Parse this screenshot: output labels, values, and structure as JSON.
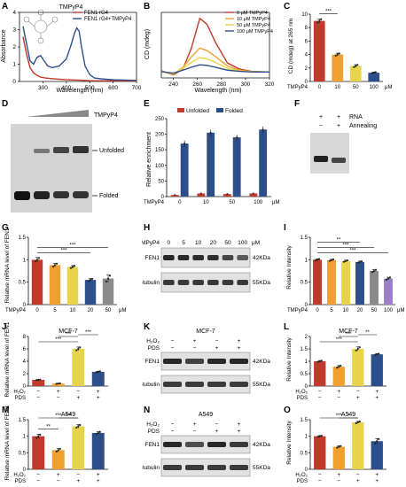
{
  "panels": {
    "A": {
      "letter": "A",
      "chart_data": {
        "type": "line",
        "inset_label": "TMPyP4",
        "xlabel": "Wavelength (nm)",
        "ylabel": "Absorbance",
        "xlim": [
          200,
          700
        ],
        "ylim": [
          0,
          4
        ],
        "xticks": [
          300,
          400,
          500,
          600,
          700
        ],
        "yticks": [
          0,
          1,
          2,
          3,
          4
        ],
        "legend": "top-right",
        "series": [
          {
            "name": "FEN1 rG4",
            "color": "#c0392b",
            "x": [
              215,
              230,
              245,
              260,
              275,
              290,
              310,
              350,
              400,
              450,
              500,
              600,
              700
            ],
            "y": [
              2.6,
              1.6,
              0.8,
              0.5,
              0.35,
              0.25,
              0.2,
              0.15,
              0.1,
              0.08,
              0.05,
              0.04,
              0.03
            ]
          },
          {
            "name": "FEN1 rG4+TMPyP4",
            "color": "#2c4f8c",
            "x": [
              215,
              230,
              245,
              260,
              275,
              290,
              305,
              320,
              340,
              370,
              400,
              420,
              435,
              445,
              455,
              465,
              480,
              500,
              520,
              550,
              600,
              650,
              700
            ],
            "y": [
              3.2,
              2.2,
              1.2,
              1.0,
              1.4,
              1.5,
              1.2,
              0.9,
              0.8,
              0.9,
              1.3,
              2.1,
              2.8,
              3.1,
              2.9,
              2.0,
              0.9,
              0.4,
              0.2,
              0.15,
              0.1,
              0.08,
              0.06
            ]
          }
        ]
      }
    },
    "B": {
      "letter": "B",
      "chart_data": {
        "type": "line",
        "xlabel": "Wavelength (nm)",
        "ylabel": "CD (mdeg)",
        "xlim": [
          230,
          320
        ],
        "xticks": [
          240,
          260,
          280,
          300,
          320
        ],
        "legend": "top-right",
        "series": [
          {
            "name": "0 μM TMPyP4",
            "color": "#c0392b",
            "x": [
              230,
              240,
              248,
              255,
              262,
              268,
              275,
              285,
              295,
              305,
              320
            ],
            "y": [
              0.2,
              -0.5,
              0.5,
              4,
              9,
              8,
              5,
              1.5,
              0.5,
              0.1,
              0
            ]
          },
          {
            "name": "10 μM TMPyP4",
            "color": "#f0a030",
            "x": [
              230,
              240,
              248,
              255,
              262,
              268,
              275,
              285,
              295,
              305,
              320
            ],
            "y": [
              0.1,
              -0.4,
              0.8,
              2.5,
              4,
              3.6,
              2.6,
              1,
              0.3,
              0.05,
              0
            ]
          },
          {
            "name": "50 μM TMPyP4",
            "color": "#e8d44a",
            "x": [
              230,
              240,
              248,
              255,
              262,
              268,
              275,
              285,
              295,
              305,
              320
            ],
            "y": [
              0.1,
              -0.3,
              0.6,
              1.6,
              2.4,
              2.2,
              1.6,
              0.6,
              0.2,
              0.05,
              0
            ]
          },
          {
            "name": "100 μM TMPyP4",
            "color": "#2c4f8c",
            "x": [
              230,
              240,
              248,
              255,
              262,
              268,
              275,
              285,
              295,
              305,
              320
            ],
            "y": [
              0.05,
              -0.2,
              0.3,
              0.8,
              1.2,
              1.1,
              0.8,
              0.3,
              0.1,
              0,
              0
            ]
          }
        ]
      }
    },
    "C": {
      "letter": "C",
      "chart_data": {
        "type": "bar",
        "ylabel": "CD (mdeg) at 265 nm",
        "xlabel_left": "TMPyP4",
        "unit": "μM",
        "categories": [
          "0",
          "10",
          "50",
          "100"
        ],
        "values": [
          9.0,
          4.0,
          2.3,
          1.3
        ],
        "errors": [
          0.3,
          0.2,
          0.2,
          0.1
        ],
        "ylim": [
          0,
          10
        ],
        "yticks": [
          0,
          2,
          4,
          6,
          8,
          10
        ],
        "colors": [
          "#c0392b",
          "#f0a030",
          "#e8d44a",
          "#2c4f8c"
        ],
        "significance": [
          {
            "from": 0,
            "to": 1,
            "label": "***"
          }
        ]
      }
    },
    "D": {
      "letter": "D",
      "ramp_label": "TMPyP4",
      "band_unfolded": "Unfolded",
      "band_folded": "Folded"
    },
    "E": {
      "letter": "E",
      "chart_data": {
        "type": "bar",
        "ylabel": "Relative enrichment",
        "xlabel_left": "TMPyP4",
        "unit": "μM",
        "categories": [
          "0",
          "10",
          "50",
          "100"
        ],
        "legend": "top",
        "series": [
          {
            "name": "Unfolded",
            "color": "#c0392b",
            "values": [
              5,
              10,
              8,
              10
            ],
            "errors": [
              1,
              2,
              2,
              2
            ]
          },
          {
            "name": "Folded",
            "color": "#2c4f8c",
            "values": [
              170,
              205,
              190,
              215
            ],
            "errors": [
              10,
              10,
              8,
              10
            ]
          }
        ],
        "ylim": [
          0,
          250
        ],
        "yticks": [
          0,
          50,
          100,
          150,
          200,
          250
        ]
      }
    },
    "F": {
      "letter": "F",
      "row1_label": "RNA",
      "row2_label": "Annealing",
      "row1_signs": [
        "+",
        "+"
      ],
      "row2_signs": [
        "−",
        "+"
      ]
    },
    "G": {
      "letter": "G",
      "chart_data": {
        "type": "bar",
        "ylabel": "Relative mRNA level of FEN1",
        "xlabel_left": "TMPyP4",
        "unit": "μM",
        "categories": [
          "0",
          "5",
          "10",
          "20",
          "50"
        ],
        "values": [
          1.0,
          0.88,
          0.84,
          0.55,
          0.58
        ],
        "errors": [
          0.05,
          0.04,
          0.03,
          0.03,
          0.08
        ],
        "ylim": [
          0,
          1.5
        ],
        "yticks": [
          0,
          0.5,
          1.0,
          1.5
        ],
        "colors": [
          "#c0392b",
          "#f0a030",
          "#e8d44a",
          "#2c4f8c",
          "#8a8a8a"
        ],
        "significance": [
          {
            "from": 0,
            "to": 3,
            "label": "***"
          },
          {
            "from": 0,
            "to": 4,
            "label": "***"
          }
        ]
      }
    },
    "H": {
      "letter": "H",
      "treatment_label": "TMPyP4",
      "doses": [
        "0",
        "5",
        "10",
        "20",
        "50",
        "100"
      ],
      "unit": "μM",
      "rows": [
        {
          "name": "FEN1",
          "kda": "42KDa"
        },
        {
          "name": "β-tubulin",
          "kda": "55KDa"
        }
      ]
    },
    "I": {
      "letter": "I",
      "chart_data": {
        "type": "bar",
        "ylabel": "Relative Intensity",
        "xlabel_left": "TMPyP4",
        "unit": "μM",
        "categories": [
          "0",
          "5",
          "10",
          "20",
          "50",
          "100"
        ],
        "values": [
          1.0,
          0.99,
          0.97,
          0.95,
          0.75,
          0.58
        ],
        "errors": [
          0.02,
          0.02,
          0.02,
          0.02,
          0.03,
          0.03
        ],
        "ylim": [
          0,
          1.5
        ],
        "yticks": [
          0,
          0.5,
          1.0,
          1.5
        ],
        "colors": [
          "#c0392b",
          "#f0a030",
          "#e8d44a",
          "#2c4f8c",
          "#8a8a8a",
          "#9b7fc9"
        ],
        "significance": [
          {
            "from": 0,
            "to": 5,
            "label": "***"
          },
          {
            "from": 0,
            "to": 4,
            "label": "***"
          },
          {
            "from": 0,
            "to": 3,
            "label": "**"
          }
        ]
      }
    },
    "J": {
      "letter": "J",
      "chart_data": {
        "type": "bar",
        "title": "MCF-7",
        "ylabel": "Relative mRNA level of FEN1",
        "row1_label": "H₂O₂",
        "row2_label": "PDS",
        "row1_signs": [
          "−",
          "+",
          "−",
          "+"
        ],
        "row2_signs": [
          "−",
          "−",
          "+",
          "+"
        ],
        "values": [
          1.0,
          0.4,
          6.0,
          2.3
        ],
        "errors": [
          0.05,
          0.05,
          0.3,
          0.1
        ],
        "ylim": [
          0,
          8
        ],
        "yticks": [
          0,
          2,
          4,
          6,
          8
        ],
        "colors": [
          "#c0392b",
          "#f0a030",
          "#e8d44a",
          "#2c4f8c"
        ],
        "significance": [
          {
            "from": 0,
            "to": 2,
            "label": "***"
          },
          {
            "from": 1,
            "to": 2,
            "label": "***"
          },
          {
            "from": 2,
            "to": 3,
            "label": "***"
          }
        ]
      }
    },
    "K": {
      "letter": "K",
      "cell_line": "MCF-7",
      "row1_label": "H₂O₂",
      "row2_label": "PDS",
      "row1_signs": [
        "−",
        "+",
        "−",
        "+"
      ],
      "row2_signs": [
        "−",
        "−",
        "+",
        "+"
      ],
      "rows": [
        {
          "name": "FEN1",
          "kda": "42KDa"
        },
        {
          "name": "β-tubulin",
          "kda": "55KDa"
        }
      ]
    },
    "L": {
      "letter": "L",
      "chart_data": {
        "type": "bar",
        "title": "MCF-7",
        "ylabel": "Relative Intensity",
        "row1_label": "H₂O₂",
        "row2_label": "PDS",
        "row1_signs": [
          "−",
          "+",
          "−",
          "+"
        ],
        "row2_signs": [
          "−",
          "−",
          "+",
          "+"
        ],
        "values": [
          1.0,
          0.78,
          1.5,
          1.28
        ],
        "errors": [
          0.03,
          0.05,
          0.08,
          0.03
        ],
        "ylim": [
          0,
          2.0
        ],
        "yticks": [
          0,
          0.5,
          1.0,
          1.5,
          2.0
        ],
        "colors": [
          "#c0392b",
          "#f0a030",
          "#e8d44a",
          "#2c4f8c"
        ],
        "significance": [
          {
            "from": 0,
            "to": 2,
            "label": "***"
          },
          {
            "from": 1,
            "to": 2,
            "label": "***"
          },
          {
            "from": 2,
            "to": 3,
            "label": "**"
          }
        ]
      }
    },
    "M": {
      "letter": "M",
      "chart_data": {
        "type": "bar",
        "title": "A549",
        "ylabel": "Relative mRNA level of FEN1",
        "row1_label": "H₂O₂",
        "row2_label": "PDS",
        "row1_signs": [
          "−",
          "+",
          "−",
          "+"
        ],
        "row2_signs": [
          "−",
          "−",
          "+",
          "+"
        ],
        "values": [
          1.0,
          0.58,
          1.3,
          1.1
        ],
        "errors": [
          0.06,
          0.05,
          0.05,
          0.04
        ],
        "ylim": [
          0,
          1.5
        ],
        "yticks": [
          0,
          0.5,
          1.0,
          1.5
        ],
        "colors": [
          "#c0392b",
          "#f0a030",
          "#e8d44a",
          "#2c4f8c"
        ],
        "significance": [
          {
            "from": 0,
            "to": 1,
            "label": "**"
          },
          {
            "from": 0,
            "to": 2,
            "label": "***"
          },
          {
            "from": 1,
            "to": 2,
            "label": "***"
          }
        ]
      }
    },
    "N": {
      "letter": "N",
      "cell_line": "A549",
      "row1_label": "H₂O₂",
      "row2_label": "PDS",
      "row1_signs": [
        "−",
        "+",
        "−",
        "+"
      ],
      "row2_signs": [
        "−",
        "−",
        "+",
        "+"
      ],
      "rows": [
        {
          "name": "FEN1",
          "kda": "42KDa"
        },
        {
          "name": "β-tubulin",
          "kda": "55KDa"
        }
      ]
    },
    "O": {
      "letter": "O",
      "chart_data": {
        "type": "bar",
        "title": "A549",
        "ylabel": "Relative Intensity",
        "row1_label": "H₂O₂",
        "row2_label": "PDS",
        "row1_signs": [
          "−",
          "+",
          "−",
          "+"
        ],
        "row2_signs": [
          "−",
          "−",
          "+",
          "+"
        ],
        "values": [
          1.0,
          0.68,
          1.42,
          0.85
        ],
        "errors": [
          0.02,
          0.03,
          0.03,
          0.08
        ],
        "ylim": [
          0,
          1.5
        ],
        "yticks": [
          0,
          0.5,
          1.0,
          1.5
        ],
        "colors": [
          "#c0392b",
          "#f0a030",
          "#e8d44a",
          "#2c4f8c"
        ],
        "significance": [
          {
            "from": 0,
            "to": 2,
            "label": "***"
          },
          {
            "from": 1,
            "to": 2,
            "label": "*"
          }
        ]
      }
    }
  }
}
